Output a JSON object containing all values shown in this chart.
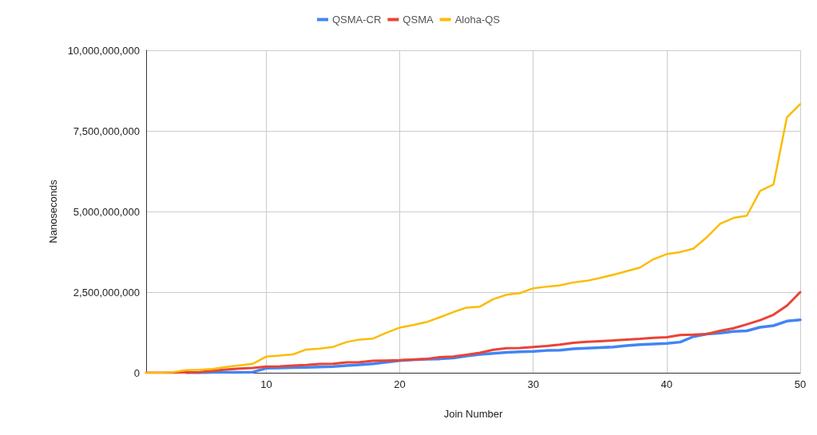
{
  "chart_data": {
    "type": "line",
    "xlabel": "Join Number",
    "ylabel": "Nanoseconds",
    "x": [
      1,
      2,
      3,
      4,
      5,
      6,
      7,
      8,
      9,
      10,
      11,
      12,
      13,
      14,
      15,
      16,
      17,
      18,
      19,
      20,
      21,
      22,
      23,
      24,
      25,
      26,
      27,
      28,
      29,
      30,
      31,
      32,
      33,
      34,
      35,
      36,
      37,
      38,
      39,
      40,
      41,
      42,
      43,
      44,
      45,
      46,
      47,
      48,
      49,
      50
    ],
    "series": [
      {
        "name": "QSMA-CR",
        "color": "#4285f4",
        "values": [
          null,
          null,
          null,
          0,
          0,
          10000000,
          10000000,
          10000000,
          20000000,
          140000000,
          150000000,
          160000000,
          170000000,
          180000000,
          190000000,
          220000000,
          250000000,
          280000000,
          330000000,
          380000000,
          400000000,
          420000000,
          430000000,
          460000000,
          520000000,
          570000000,
          600000000,
          630000000,
          650000000,
          660000000,
          690000000,
          700000000,
          740000000,
          760000000,
          780000000,
          800000000,
          840000000,
          870000000,
          890000000,
          910000000,
          950000000,
          1120000000,
          1200000000,
          1230000000,
          1280000000,
          1300000000,
          1410000000,
          1460000000,
          1600000000,
          1640000000
        ]
      },
      {
        "name": "QSMA",
        "color": "#ea4335",
        "values": [
          0,
          0,
          0,
          10000000,
          20000000,
          60000000,
          100000000,
          130000000,
          150000000,
          190000000,
          200000000,
          220000000,
          240000000,
          270000000,
          280000000,
          320000000,
          330000000,
          370000000,
          380000000,
          390000000,
          410000000,
          430000000,
          480000000,
          500000000,
          560000000,
          620000000,
          710000000,
          760000000,
          770000000,
          800000000,
          830000000,
          870000000,
          930000000,
          960000000,
          980000000,
          1000000000,
          1030000000,
          1050000000,
          1080000000,
          1100000000,
          1170000000,
          1180000000,
          1200000000,
          1300000000,
          1380000000,
          1500000000,
          1630000000,
          1800000000,
          2080000000,
          2500000000
        ]
      },
      {
        "name": "Aloha-QS",
        "color": "#fbbc04",
        "values": [
          0,
          0,
          20000000,
          80000000,
          90000000,
          120000000,
          180000000,
          230000000,
          280000000,
          500000000,
          530000000,
          570000000,
          720000000,
          750000000,
          800000000,
          950000000,
          1030000000,
          1060000000,
          1240000000,
          1400000000,
          1480000000,
          1570000000,
          1720000000,
          1880000000,
          2020000000,
          2050000000,
          2280000000,
          2420000000,
          2470000000,
          2620000000,
          2670000000,
          2710000000,
          2800000000,
          2850000000,
          2940000000,
          3040000000,
          3150000000,
          3260000000,
          3520000000,
          3680000000,
          3740000000,
          3850000000,
          4200000000,
          4620000000,
          4800000000,
          4870000000,
          5640000000,
          5840000000,
          7920000000,
          8330000000
        ]
      }
    ],
    "xlim": [
      1,
      50
    ],
    "xticks": [
      10,
      20,
      30,
      40,
      50
    ],
    "ylim": [
      0,
      10000000000
    ],
    "yticks": [
      {
        "value": 0,
        "label": "0"
      },
      {
        "value": 2500000000,
        "label": "2,500,000,000"
      },
      {
        "value": 5000000000,
        "label": "5,000,000,000"
      },
      {
        "value": 7500000000,
        "label": "7,500,000,000"
      },
      {
        "value": 10000000000,
        "label": "10,000,000,000"
      }
    ],
    "grid": true,
    "legend": "top",
    "marker": "none",
    "line_style": "solid"
  }
}
